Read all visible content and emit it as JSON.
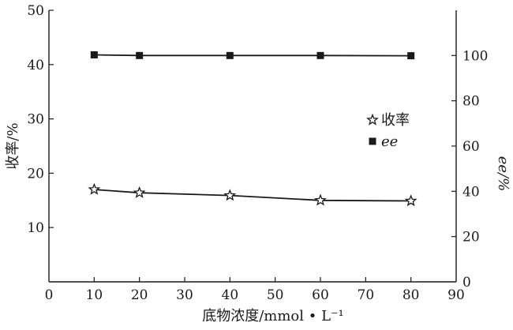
{
  "chart_data": {
    "type": "line",
    "x": [
      10,
      20,
      40,
      60,
      80
    ],
    "xlabel": "底物浓度/mmol • L⁻¹",
    "xlim": [
      0,
      90
    ],
    "xticks": [
      0,
      10,
      20,
      30,
      40,
      50,
      60,
      70,
      80,
      90
    ],
    "ylabel_left": "收率/%",
    "ylim_left": [
      0,
      50
    ],
    "yticks_left": [
      0,
      10,
      20,
      30,
      40,
      50
    ],
    "ylabel_right": "ee/%",
    "ylim_right": [
      0,
      120
    ],
    "yticks_right": [
      0,
      20,
      40,
      60,
      80,
      100
    ],
    "grid": false,
    "legend_position": "center-right",
    "series": [
      {
        "name": "收率",
        "axis": "left",
        "marker": "star",
        "values": [
          17.0,
          16.4,
          15.9,
          15.0,
          14.9
        ]
      },
      {
        "name": "ee",
        "axis": "right",
        "marker": "square",
        "values": [
          100.3,
          100.0,
          100.0,
          100.0,
          99.9
        ]
      }
    ]
  }
}
